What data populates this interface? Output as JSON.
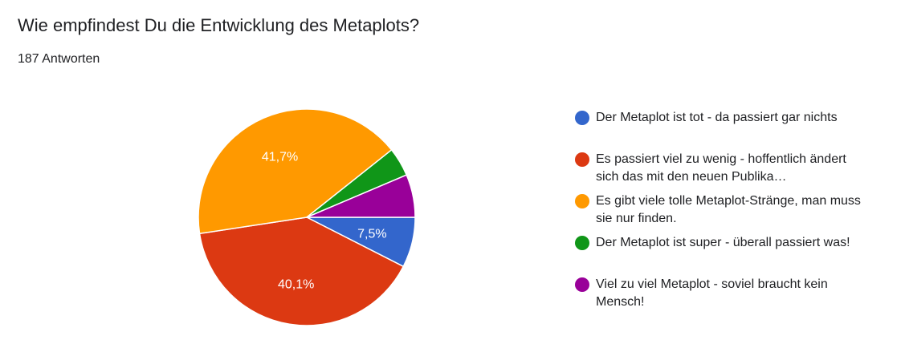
{
  "question": {
    "title": "Wie empfindest Du die Entwicklung des Metaplots?",
    "responses": "187 Antworten"
  },
  "chart_data": {
    "type": "pie",
    "series": [
      {
        "name": "Der Metaplot ist tot - da passiert gar nichts",
        "value": 7.5,
        "label": "7,5%",
        "color": "#3366cc"
      },
      {
        "name": "Es passiert viel zu wenig - hoffentlich ändert sich das mit den neuen Publika…",
        "value": 40.1,
        "label": "40,1%",
        "color": "#dc3912"
      },
      {
        "name": "Es gibt viele tolle Metaplot-Stränge, man muss sie nur finden.",
        "value": 41.7,
        "label": "41,7%",
        "color": "#ff9900"
      },
      {
        "name": "Der Metaplot ist super - überall passiert was!",
        "value": 4.3,
        "label": "",
        "color": "#109618"
      },
      {
        "name": "Viel zu viel Metaplot - soviel braucht kein Mensch!",
        "value": 6.4,
        "label": "",
        "color": "#990099"
      }
    ],
    "legend": "right"
  }
}
